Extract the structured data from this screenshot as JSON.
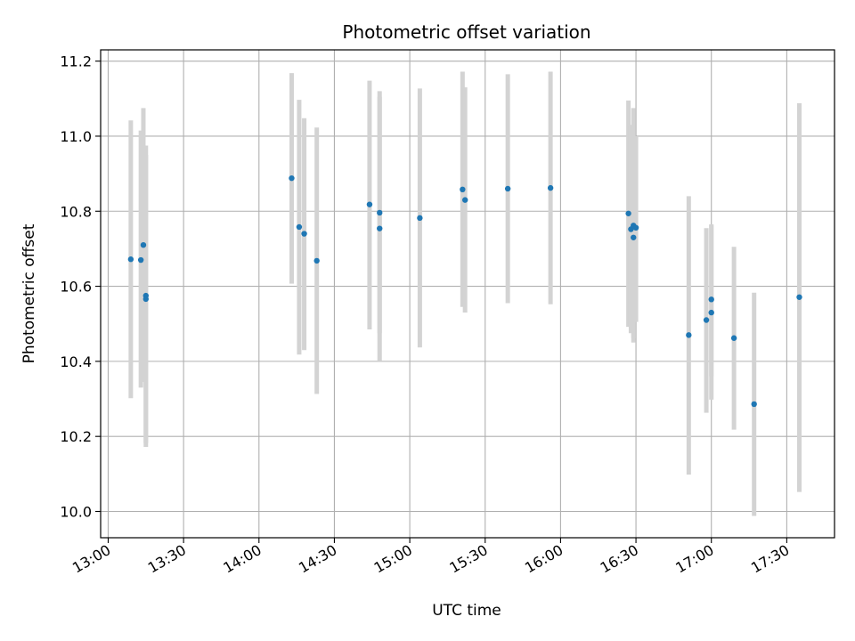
{
  "chart_data": {
    "type": "scatter",
    "title": "Photometric offset variation",
    "xlabel": "UTC time",
    "ylabel": "Photometric offset",
    "grid": true,
    "x_ticks": [
      "13:00",
      "13:30",
      "14:00",
      "14:30",
      "15:00",
      "15:30",
      "16:00",
      "16:30",
      "17:00",
      "17:30"
    ],
    "y_ticks": [
      "10.0",
      "10.2",
      "10.4",
      "10.6",
      "10.8",
      "11.0",
      "11.2"
    ],
    "xlim": [
      "12:57",
      "17:49"
    ],
    "ylim": [
      9.93,
      11.23
    ],
    "colors": {
      "point": "#1f77b4",
      "errorbar": "#d3d3d3",
      "grid": "#b0b0b0"
    },
    "points": [
      {
        "x": "13:09",
        "y": 10.672,
        "ylo": 10.302,
        "yhi": 11.042
      },
      {
        "x": "13:13",
        "y": 10.67,
        "ylo": 10.33,
        "yhi": 11.015
      },
      {
        "x": "13:14",
        "y": 10.71,
        "ylo": 10.345,
        "yhi": 11.075
      },
      {
        "x": "13:15",
        "y": 10.575,
        "ylo": 10.172,
        "yhi": 10.975
      },
      {
        "x": "13:15",
        "y": 10.566,
        "ylo": 10.182,
        "yhi": 10.95
      },
      {
        "x": "14:13",
        "y": 10.888,
        "ylo": 10.607,
        "yhi": 11.168
      },
      {
        "x": "14:16",
        "y": 10.758,
        "ylo": 10.418,
        "yhi": 11.097
      },
      {
        "x": "14:18",
        "y": 10.74,
        "ylo": 10.43,
        "yhi": 11.048
      },
      {
        "x": "14:23",
        "y": 10.668,
        "ylo": 10.313,
        "yhi": 11.023
      },
      {
        "x": "14:44",
        "y": 10.818,
        "ylo": 10.485,
        "yhi": 11.148
      },
      {
        "x": "14:48",
        "y": 10.796,
        "ylo": 10.475,
        "yhi": 11.12
      },
      {
        "x": "14:48",
        "y": 10.754,
        "ylo": 10.402,
        "yhi": 11.105
      },
      {
        "x": "15:04",
        "y": 10.782,
        "ylo": 10.437,
        "yhi": 11.127
      },
      {
        "x": "15:21",
        "y": 10.858,
        "ylo": 10.545,
        "yhi": 11.172
      },
      {
        "x": "15:22",
        "y": 10.83,
        "ylo": 10.53,
        "yhi": 11.13
      },
      {
        "x": "15:39",
        "y": 10.86,
        "ylo": 10.555,
        "yhi": 11.165
      },
      {
        "x": "15:56",
        "y": 10.862,
        "ylo": 10.552,
        "yhi": 11.172
      },
      {
        "x": "16:27",
        "y": 10.794,
        "ylo": 10.492,
        "yhi": 11.095
      },
      {
        "x": "16:28",
        "y": 10.752,
        "ylo": 10.475,
        "yhi": 11.03
      },
      {
        "x": "16:29",
        "y": 10.73,
        "ylo": 10.462,
        "yhi": 11.0
      },
      {
        "x": "16:29",
        "y": 10.762,
        "ylo": 10.45,
        "yhi": 11.075
      },
      {
        "x": "16:30",
        "y": 10.756,
        "ylo": 10.505,
        "yhi": 11.0
      },
      {
        "x": "16:51",
        "y": 10.47,
        "ylo": 10.098,
        "yhi": 10.84
      },
      {
        "x": "16:58",
        "y": 10.51,
        "ylo": 10.263,
        "yhi": 10.755
      },
      {
        "x": "17:00",
        "y": 10.565,
        "ylo": 10.36,
        "yhi": 10.765
      },
      {
        "x": "17:00",
        "y": 10.53,
        "ylo": 10.298,
        "yhi": 10.762
      },
      {
        "x": "17:09",
        "y": 10.462,
        "ylo": 10.218,
        "yhi": 10.705
      },
      {
        "x": "17:17",
        "y": 10.286,
        "ylo": 9.988,
        "yhi": 10.583
      },
      {
        "x": "17:35",
        "y": 10.571,
        "ylo": 10.052,
        "yhi": 11.088
      }
    ]
  }
}
